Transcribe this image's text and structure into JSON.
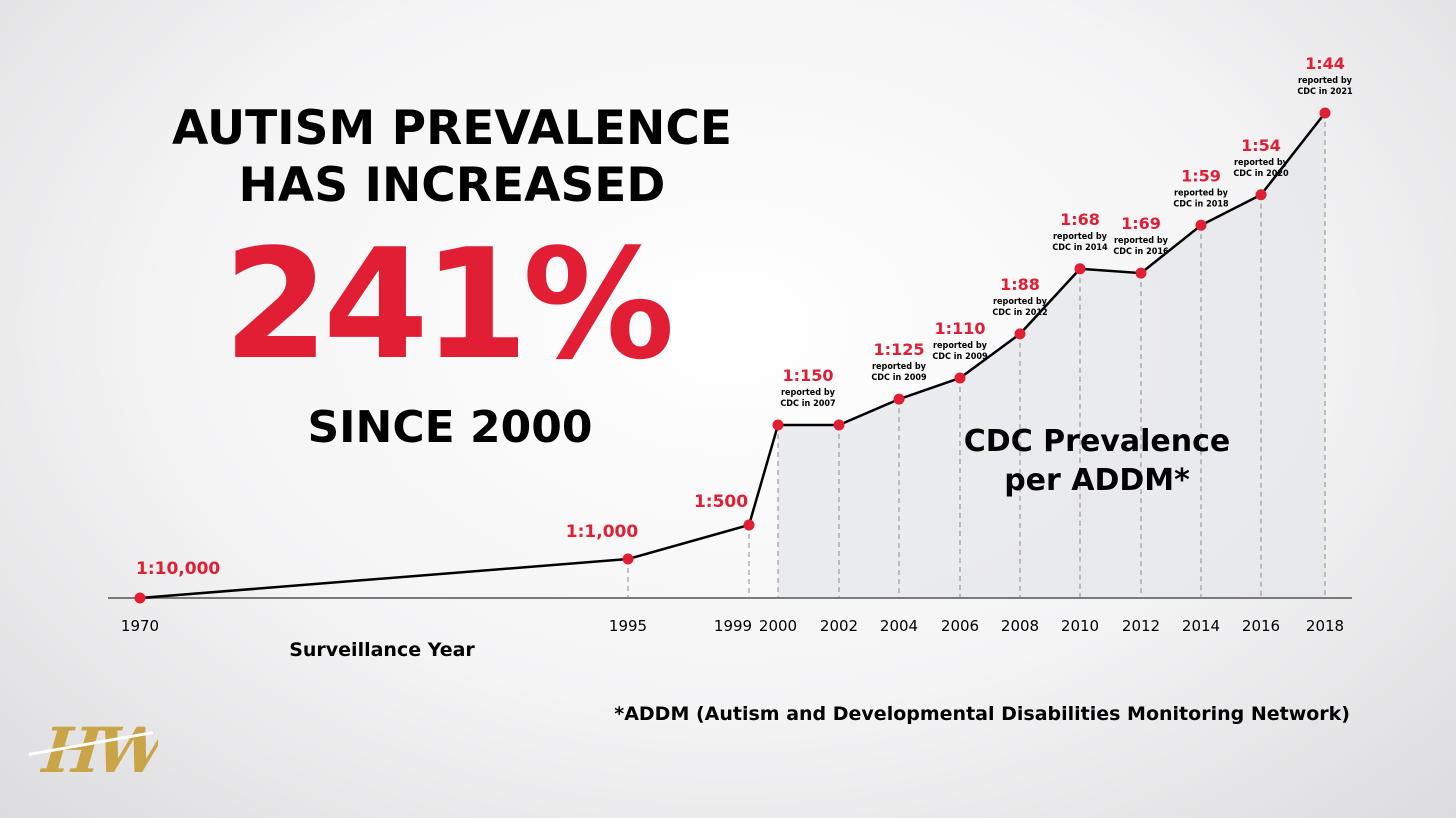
{
  "headline": {
    "line1": "AUTISM PREVALENCE",
    "line2": "HAS INCREASED",
    "big_number": "241%",
    "since": "SINCE 2000"
  },
  "chart_data": {
    "type": "line",
    "title": "CDC Prevalence per ADDM*",
    "title_lines": [
      "CDC Prevalence",
      "per ADDM*"
    ],
    "xlabel": "Surveillance Year",
    "ylabel": "",
    "grid": false,
    "footnote": "*ADDM (Autism and Developmental Disabilities Monitoring Network)",
    "x_ticks": [
      "1970",
      "1995",
      "1999",
      "2000",
      "2002",
      "2004",
      "2006",
      "2008",
      "2010",
      "2012",
      "2014",
      "2016",
      "2018"
    ],
    "series": [
      {
        "points": [
          {
            "x": 1970,
            "label": "1:10,000",
            "value": 0.0001,
            "note": [
              "",
              ""
            ]
          },
          {
            "x": 1995,
            "label": "1:1,000",
            "value": 0.001,
            "note": [
              "",
              ""
            ]
          },
          {
            "x": 1999,
            "label": "1:500",
            "value": 0.002,
            "note": [
              "",
              ""
            ]
          },
          {
            "x": 2000,
            "label": "1:150",
            "value": 0.00667,
            "note": [
              "reported by",
              "CDC in 2007"
            ]
          },
          {
            "x": 2002,
            "label": "",
            "value": 0.00667,
            "note": [
              "",
              ""
            ]
          },
          {
            "x": 2004,
            "label": "1:125",
            "value": 0.008,
            "note": [
              "reported by",
              "CDC in 2009"
            ]
          },
          {
            "x": 2006,
            "label": "1:110",
            "value": 0.00909,
            "note": [
              "reported by",
              "CDC in 2009"
            ]
          },
          {
            "x": 2008,
            "label": "1:88",
            "value": 0.01136,
            "note": [
              "reported by",
              "CDC in 2012"
            ]
          },
          {
            "x": 2010,
            "label": "1:68",
            "value": 0.01471,
            "note": [
              "reported by",
              "CDC in 2014"
            ]
          },
          {
            "x": 2012,
            "label": "1:69",
            "value": 0.01449,
            "note": [
              "reported by",
              "CDC in 2016"
            ]
          },
          {
            "x": 2014,
            "label": "1:59",
            "value": 0.01695,
            "note": [
              "reported by",
              "CDC in 2018"
            ]
          },
          {
            "x": 2016,
            "label": "1:54",
            "value": 0.01852,
            "note": [
              "reported by",
              "CDC in 2020"
            ]
          },
          {
            "x": 2018,
            "label": "1:44",
            "value": 0.02273,
            "note": [
              "reported by",
              "CDC in 2021"
            ]
          }
        ]
      }
    ]
  },
  "logo_text": "HW",
  "colors": {
    "accent": "#e11e34",
    "line": "#000000",
    "axis": "#7a7a7a",
    "fill": "#e4e6ea",
    "logo": "#c9a548"
  }
}
